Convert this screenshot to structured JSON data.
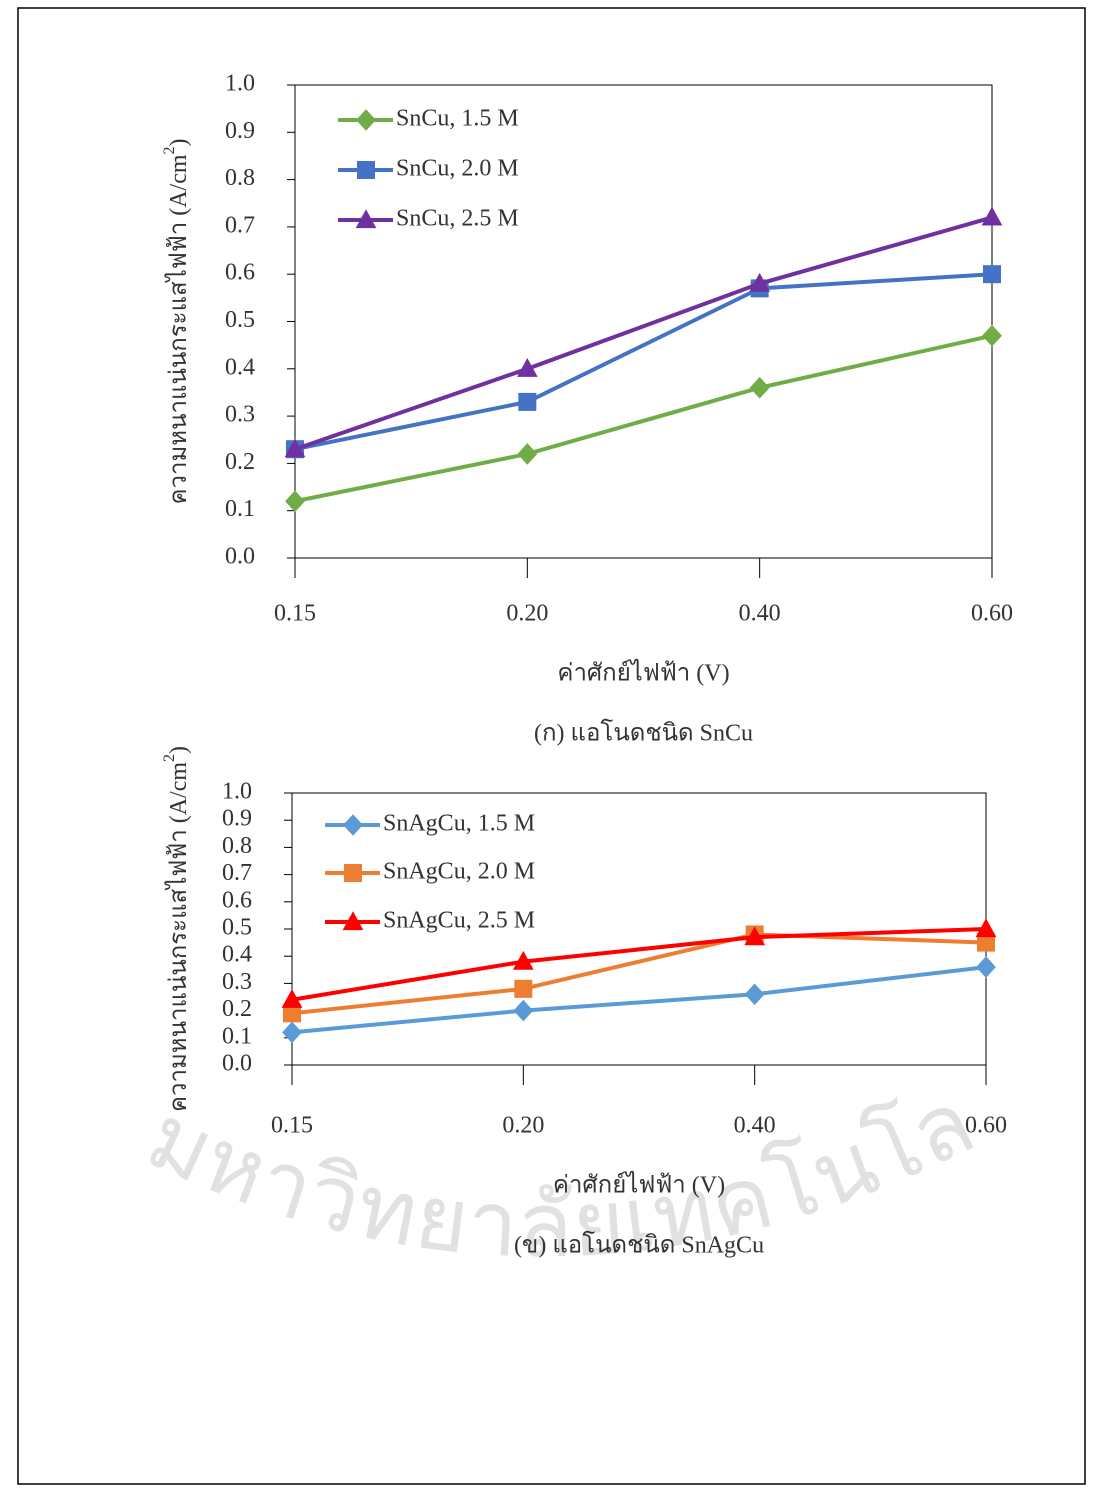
{
  "watermark": "มหาวิทยาลัยเทคโนโลยีสุรนารี",
  "chart_data": [
    {
      "type": "line",
      "caption": "(ก) แอโนดชนิด SnCu",
      "x_label": "ค่าศักย์ไฟฟ้า (V)",
      "y_label": "ความหนาแน่นกระแสไฟฟ้า (A/cm",
      "y_label_sup": "2",
      "y_label_end": ")",
      "categories": [
        "0.15",
        "0.20",
        "0.40",
        "0.60"
      ],
      "ylim": [
        0,
        1
      ],
      "yticks": [
        {
          "value": 0,
          "label": "0.0"
        },
        0.1,
        0.2,
        0.3,
        0.4,
        0.5,
        0.6,
        0.7,
        0.8,
        0.9,
        {
          "value": 1,
          "label": "1.0"
        }
      ],
      "series": [
        {
          "name": "SnCu, 1.5 M",
          "color": "#70ad47",
          "marker": "diamond",
          "values": [
            0.12,
            0.22,
            0.36,
            0.47
          ]
        },
        {
          "name": "SnCu, 2.0 M",
          "color": "#4472c4",
          "marker": "square",
          "values": [
            0.23,
            0.33,
            0.57,
            0.6
          ]
        },
        {
          "name": "SnCu, 2.5 M",
          "color": "#7030a0",
          "marker": "triangle",
          "values": [
            0.23,
            0.4,
            0.58,
            0.72
          ]
        }
      ]
    },
    {
      "type": "line",
      "caption": "(ข) แอโนดชนิด SnAgCu",
      "x_label": "ค่าศักย์ไฟฟ้า (V)",
      "y_label": "ความหนาแน่นกระแสไฟฟ้า (A/cm",
      "y_label_sup": "2",
      "y_label_end": ")",
      "categories": [
        "0.15",
        "0.20",
        "0.40",
        "0.60"
      ],
      "ylim": [
        0,
        1
      ],
      "yticks": [
        {
          "value": 0,
          "label": "0.0"
        },
        0.1,
        0.2,
        0.3,
        0.4,
        0.5,
        0.6,
        0.7,
        0.8,
        0.9,
        {
          "value": 1,
          "label": "1.0"
        }
      ],
      "series": [
        {
          "name": "SnAgCu, 1.5 M",
          "color": "#5b9bd5",
          "marker": "diamond",
          "values": [
            0.12,
            0.2,
            0.26,
            0.36
          ]
        },
        {
          "name": "SnAgCu, 2.0 M",
          "color": "#ed7d31",
          "marker": "square",
          "values": [
            0.19,
            0.28,
            0.48,
            0.45
          ]
        },
        {
          "name": "SnAgCu, 2.5 M",
          "color": "#ff0000",
          "marker": "triangle",
          "values": [
            0.24,
            0.38,
            0.47,
            0.5
          ]
        }
      ]
    }
  ]
}
